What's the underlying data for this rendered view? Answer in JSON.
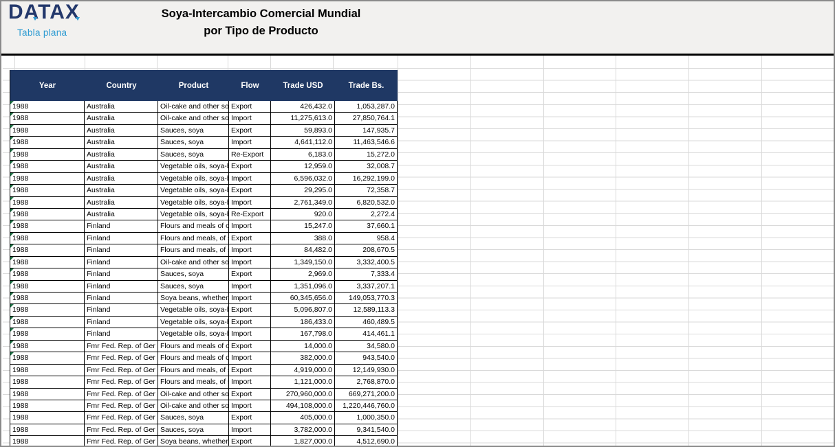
{
  "branding": {
    "logo_text": "DATAX",
    "logo_subtitle": "Tabla plana"
  },
  "title": {
    "line1": "Soya-Intercambio Comercial Mundial",
    "line2": "por Tipo de Producto"
  },
  "colors": {
    "header_navy": "#1F3864",
    "logo_navy": "#23386B",
    "accent_blue": "#2D9BD2",
    "indicator_green": "#1E7145",
    "gridline": "#D9D9D9",
    "band_bg": "#F2F1EF"
  },
  "table": {
    "columns": [
      "Year",
      "Country",
      "Product",
      "Flow",
      "Trade USD",
      "Trade Bs."
    ],
    "rows": [
      {
        "year": "1988",
        "country": "Australia",
        "product": "Oil-cake and other so",
        "flow": "Export",
        "trade_usd": "426,432.0",
        "trade_bs": "1,053,287.0",
        "indicator": true
      },
      {
        "year": "1988",
        "country": "Australia",
        "product": "Oil-cake and other so",
        "flow": "Import",
        "trade_usd": "11,275,613.0",
        "trade_bs": "27,850,764.1",
        "indicator": true
      },
      {
        "year": "1988",
        "country": "Australia",
        "product": "Sauces, soya",
        "flow": "Export",
        "trade_usd": "59,893.0",
        "trade_bs": "147,935.7",
        "indicator": true
      },
      {
        "year": "1988",
        "country": "Australia",
        "product": "Sauces, soya",
        "flow": "Import",
        "trade_usd": "4,641,112.0",
        "trade_bs": "11,463,546.6",
        "indicator": true
      },
      {
        "year": "1988",
        "country": "Australia",
        "product": "Sauces, soya",
        "flow": "Re-Export",
        "trade_usd": "6,183.0",
        "trade_bs": "15,272.0",
        "indicator": true
      },
      {
        "year": "1988",
        "country": "Australia",
        "product": "Vegetable oils, soya-b",
        "flow": "Export",
        "trade_usd": "12,959.0",
        "trade_bs": "32,008.7",
        "indicator": true
      },
      {
        "year": "1988",
        "country": "Australia",
        "product": "Vegetable oils, soya-b",
        "flow": "Import",
        "trade_usd": "6,596,032.0",
        "trade_bs": "16,292,199.0",
        "indicator": true
      },
      {
        "year": "1988",
        "country": "Australia",
        "product": "Vegetable oils, soya-b",
        "flow": "Export",
        "trade_usd": "29,295.0",
        "trade_bs": "72,358.7",
        "indicator": true
      },
      {
        "year": "1988",
        "country": "Australia",
        "product": "Vegetable oils, soya-b",
        "flow": "Import",
        "trade_usd": "2,761,349.0",
        "trade_bs": "6,820,532.0",
        "indicator": true
      },
      {
        "year": "1988",
        "country": "Australia",
        "product": "Vegetable oils, soya-b",
        "flow": "Re-Export",
        "trade_usd": "920.0",
        "trade_bs": "2,272.4",
        "indicator": true
      },
      {
        "year": "1988",
        "country": "Finland",
        "product": "Flours and meals of o",
        "flow": "Import",
        "trade_usd": "15,247.0",
        "trade_bs": "37,660.1",
        "indicator": true
      },
      {
        "year": "1988",
        "country": "Finland",
        "product": "Flours and meals, of s",
        "flow": "Export",
        "trade_usd": "388.0",
        "trade_bs": "958.4",
        "indicator": true
      },
      {
        "year": "1988",
        "country": "Finland",
        "product": "Flours and meals, of s",
        "flow": "Import",
        "trade_usd": "84,482.0",
        "trade_bs": "208,670.5",
        "indicator": true
      },
      {
        "year": "1988",
        "country": "Finland",
        "product": "Oil-cake and other so",
        "flow": "Import",
        "trade_usd": "1,349,150.0",
        "trade_bs": "3,332,400.5",
        "indicator": true
      },
      {
        "year": "1988",
        "country": "Finland",
        "product": "Sauces, soya",
        "flow": "Export",
        "trade_usd": "2,969.0",
        "trade_bs": "7,333.4",
        "indicator": true
      },
      {
        "year": "1988",
        "country": "Finland",
        "product": "Sauces, soya",
        "flow": "Import",
        "trade_usd": "1,351,096.0",
        "trade_bs": "3,337,207.1",
        "indicator": true
      },
      {
        "year": "1988",
        "country": "Finland",
        "product": "Soya beans, whether/",
        "flow": "Import",
        "trade_usd": "60,345,656.0",
        "trade_bs": "149,053,770.3",
        "indicator": true
      },
      {
        "year": "1988",
        "country": "Finland",
        "product": "Vegetable oils, soya-b",
        "flow": "Export",
        "trade_usd": "5,096,807.0",
        "trade_bs": "12,589,113.3",
        "indicator": true
      },
      {
        "year": "1988",
        "country": "Finland",
        "product": "Vegetable oils, soya-b",
        "flow": "Export",
        "trade_usd": "186,433.0",
        "trade_bs": "460,489.5",
        "indicator": true
      },
      {
        "year": "1988",
        "country": "Finland",
        "product": "Vegetable oils, soya-b",
        "flow": "Import",
        "trade_usd": "167,798.0",
        "trade_bs": "414,461.1",
        "indicator": true
      },
      {
        "year": "1988",
        "country": "Fmr Fed. Rep. of Ger",
        "product": "Flours and meals of o",
        "flow": "Export",
        "trade_usd": "14,000.0",
        "trade_bs": "34,580.0",
        "indicator": true
      },
      {
        "year": "1988",
        "country": "Fmr Fed. Rep. of Ger",
        "product": "Flours and meals of o",
        "flow": "Import",
        "trade_usd": "382,000.0",
        "trade_bs": "943,540.0",
        "indicator": true
      },
      {
        "year": "1988",
        "country": "Fmr Fed. Rep. of Ger",
        "product": "Flours and meals, of s",
        "flow": "Export",
        "trade_usd": "4,919,000.0",
        "trade_bs": "12,149,930.0",
        "indicator": false
      },
      {
        "year": "1988",
        "country": "Fmr Fed. Rep. of Ger",
        "product": "Flours and meals, of s",
        "flow": "Import",
        "trade_usd": "1,121,000.0",
        "trade_bs": "2,768,870.0",
        "indicator": false
      },
      {
        "year": "1988",
        "country": "Fmr Fed. Rep. of Ger",
        "product": "Oil-cake and other so",
        "flow": "Export",
        "trade_usd": "270,960,000.0",
        "trade_bs": "669,271,200.0",
        "indicator": false
      },
      {
        "year": "1988",
        "country": "Fmr Fed. Rep. of Ger",
        "product": "Oil-cake and other so",
        "flow": "Import",
        "trade_usd": "494,108,000.0",
        "trade_bs": "1,220,446,760.0",
        "indicator": false
      },
      {
        "year": "1988",
        "country": "Fmr Fed. Rep. of Ger",
        "product": "Sauces, soya",
        "flow": "Export",
        "trade_usd": "405,000.0",
        "trade_bs": "1,000,350.0",
        "indicator": false
      },
      {
        "year": "1988",
        "country": "Fmr Fed. Rep. of Ger",
        "product": "Sauces, soya",
        "flow": "Import",
        "trade_usd": "3,782,000.0",
        "trade_bs": "9,341,540.0",
        "indicator": false
      },
      {
        "year": "1988",
        "country": "Fmr Fed. Rep. of Ger",
        "product": "Soya beans, whether/",
        "flow": "Export",
        "trade_usd": "1,827,000.0",
        "trade_bs": "4,512,690.0",
        "indicator": false
      }
    ]
  },
  "layout_hints": {
    "vertical_gridlines_x": [
      19,
      121,
      226,
      329,
      391,
      482,
      576,
      682,
      788,
      893,
      999,
      1105
    ]
  }
}
